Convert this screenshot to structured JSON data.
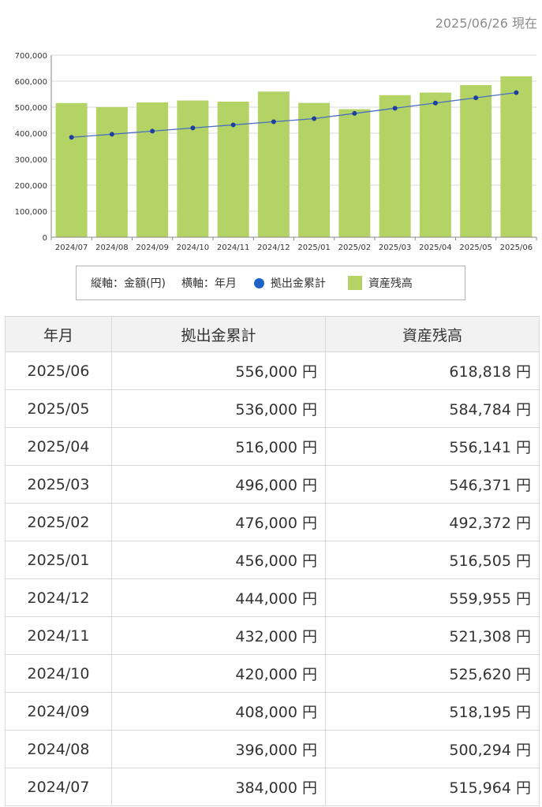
{
  "as_of": "2025/06/26 現在",
  "legend": {
    "vertical": "縦軸：金額(円)",
    "horizontal": "横軸：年月",
    "contrib": "拠出金累計",
    "balance": "資産残高"
  },
  "table": {
    "headers": [
      "年月",
      "拠出金累計",
      "資産残高"
    ],
    "rows": [
      [
        "2025/06",
        "556,000 円",
        "618,818 円"
      ],
      [
        "2025/05",
        "536,000 円",
        "584,784 円"
      ],
      [
        "2025/04",
        "516,000 円",
        "556,141 円"
      ],
      [
        "2025/03",
        "496,000 円",
        "546,371 円"
      ],
      [
        "2025/02",
        "476,000 円",
        "492,372 円"
      ],
      [
        "2025/01",
        "456,000 円",
        "516,505 円"
      ],
      [
        "2024/12",
        "444,000 円",
        "559,955 円"
      ],
      [
        "2024/11",
        "432,000 円",
        "521,308 円"
      ],
      [
        "2024/10",
        "420,000 円",
        "525,620 円"
      ],
      [
        "2024/09",
        "408,000 円",
        "518,195 円"
      ],
      [
        "2024/08",
        "396,000 円",
        "500,294 円"
      ],
      [
        "2024/07",
        "384,000 円",
        "515,964 円"
      ]
    ]
  },
  "chart_data": {
    "type": "bar",
    "categories": [
      "2024/07",
      "2024/08",
      "2024/09",
      "2024/10",
      "2024/11",
      "2024/12",
      "2025/01",
      "2025/02",
      "2025/03",
      "2025/04",
      "2025/05",
      "2025/06"
    ],
    "series": [
      {
        "name": "資産残高",
        "type": "bar",
        "color": "#b3d465",
        "values": [
          515964,
          500294,
          518195,
          525620,
          521308,
          559955,
          516505,
          492372,
          546371,
          556141,
          584784,
          618818
        ]
      },
      {
        "name": "拠出金累計",
        "type": "line",
        "color": "#1e3fa0",
        "values": [
          384000,
          396000,
          408000,
          420000,
          432000,
          444000,
          456000,
          476000,
          496000,
          516000,
          536000,
          556000
        ]
      }
    ],
    "ylim": [
      0,
      700000
    ],
    "yticks": [
      0,
      100000,
      200000,
      300000,
      400000,
      500000,
      600000,
      700000
    ],
    "ytick_labels": [
      "0",
      "100,000",
      "200,000",
      "300,000",
      "400,000",
      "500,000",
      "600,000",
      "700,000"
    ],
    "grid": true,
    "legend_position": "bottom"
  }
}
